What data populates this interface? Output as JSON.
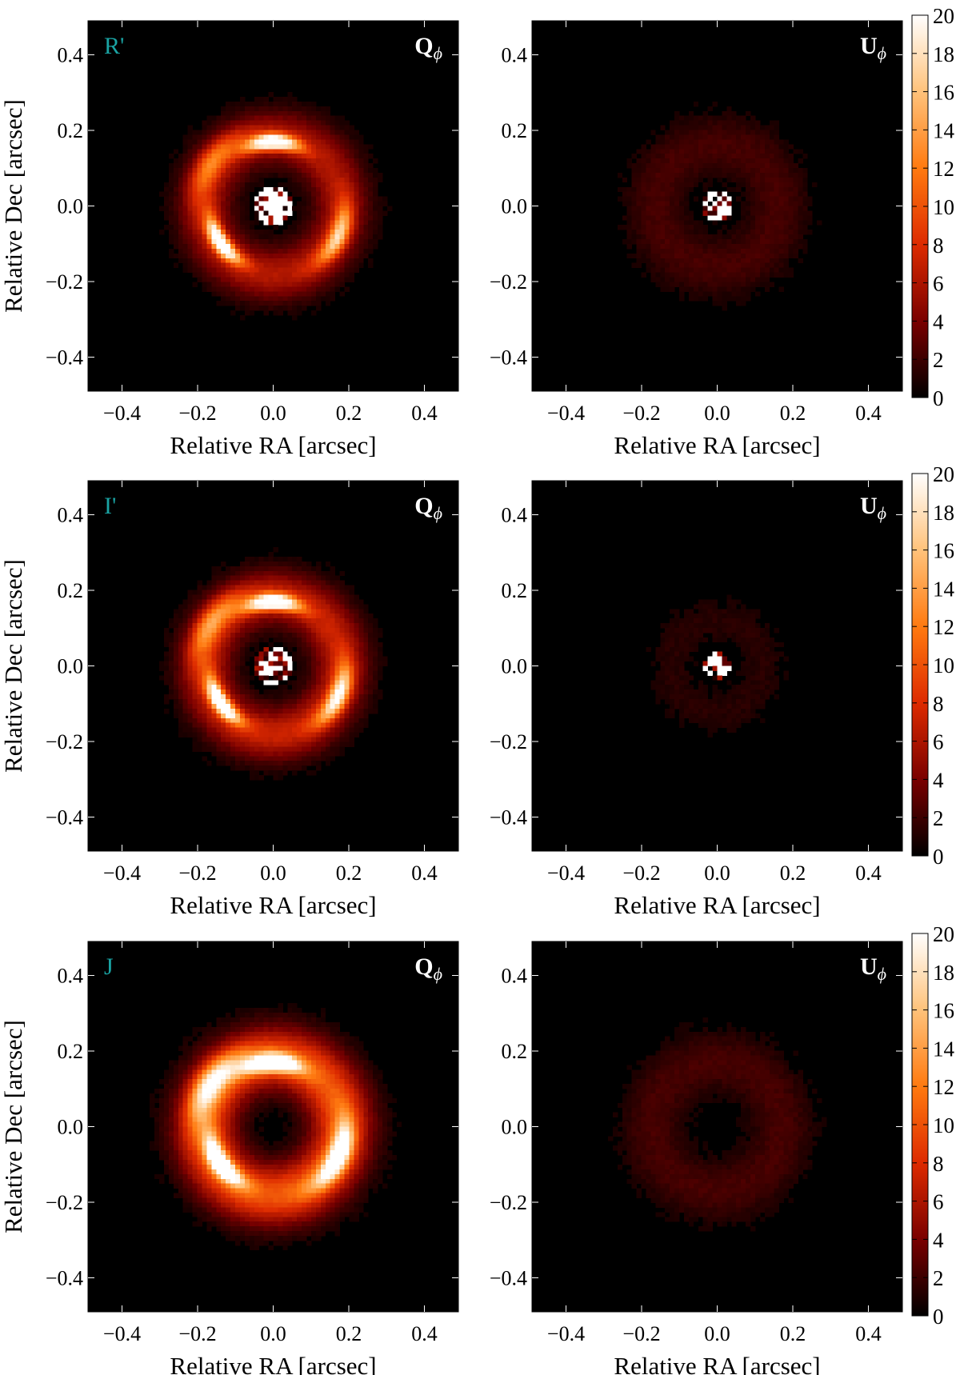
{
  "chart_data": {
    "type": "heatmap",
    "rows": [
      {
        "band": "R'",
        "panels": [
          {
            "stokes": "Q",
            "xlabel": "Relative RA [arcsec]",
            "ylabel": "Relative Dec [arcsec]",
            "xlim": [
              -0.49,
              0.49
            ],
            "ylim": [
              -0.49,
              0.49
            ],
            "features": [
              {
                "kind": "arc",
                "pa_deg": 90,
                "radius": 0.17,
                "width": 0.025,
                "span_deg": 55,
                "peak": 20
              },
              {
                "kind": "arc",
                "pa_deg": 215,
                "radius": 0.17,
                "width": 0.025,
                "span_deg": 55,
                "peak": 20
              },
              {
                "kind": "arc",
                "pa_deg": 335,
                "radius": 0.19,
                "width": 0.03,
                "span_deg": 60,
                "peak": 12
              },
              {
                "kind": "arc",
                "pa_deg": 145,
                "radius": 0.2,
                "width": 0.04,
                "span_deg": 70,
                "peak": 7
              },
              {
                "kind": "halo",
                "radius": 0.18,
                "width": 0.07,
                "peak": 6
              },
              {
                "kind": "core",
                "radius": 0.05,
                "peak": 20
              }
            ]
          },
          {
            "stokes": "U",
            "xlabel": "Relative RA [arcsec]",
            "ylabel": "",
            "xlim": [
              -0.49,
              0.49
            ],
            "ylim": [
              -0.49,
              0.49
            ],
            "features": [
              {
                "kind": "halo",
                "radius": 0.16,
                "width": 0.08,
                "peak": 2
              },
              {
                "kind": "core",
                "radius": 0.04,
                "peak": 20
              }
            ]
          }
        ]
      },
      {
        "band": "I'",
        "panels": [
          {
            "stokes": "Q",
            "xlabel": "Relative RA [arcsec]",
            "ylabel": "Relative Dec [arcsec]",
            "xlim": [
              -0.49,
              0.49
            ],
            "ylim": [
              -0.49,
              0.49
            ],
            "features": [
              {
                "kind": "arc",
                "pa_deg": 90,
                "radius": 0.17,
                "width": 0.025,
                "span_deg": 55,
                "peak": 20
              },
              {
                "kind": "arc",
                "pa_deg": 215,
                "radius": 0.17,
                "width": 0.025,
                "span_deg": 55,
                "peak": 20
              },
              {
                "kind": "arc",
                "pa_deg": 335,
                "radius": 0.19,
                "width": 0.03,
                "span_deg": 60,
                "peak": 14
              },
              {
                "kind": "arc",
                "pa_deg": 145,
                "radius": 0.2,
                "width": 0.04,
                "span_deg": 70,
                "peak": 8
              },
              {
                "kind": "halo",
                "radius": 0.18,
                "width": 0.07,
                "peak": 7
              },
              {
                "kind": "core",
                "radius": 0.05,
                "peak": 20
              }
            ]
          },
          {
            "stokes": "U",
            "xlabel": "Relative RA [arcsec]",
            "ylabel": "",
            "xlim": [
              -0.49,
              0.49
            ],
            "ylim": [
              -0.49,
              0.49
            ],
            "features": [
              {
                "kind": "halo",
                "radius": 0.12,
                "width": 0.06,
                "peak": 1
              },
              {
                "kind": "core",
                "radius": 0.035,
                "peak": 20
              }
            ]
          }
        ]
      },
      {
        "band": "J",
        "panels": [
          {
            "stokes": "Q",
            "xlabel": "Relative RA [arcsec]",
            "ylabel": "Relative Dec [arcsec]",
            "xlim": [
              -0.49,
              0.49
            ],
            "ylim": [
              -0.49,
              0.49
            ],
            "features": [
              {
                "kind": "arc",
                "pa_deg": 90,
                "radius": 0.17,
                "width": 0.03,
                "span_deg": 60,
                "peak": 20
              },
              {
                "kind": "arc",
                "pa_deg": 215,
                "radius": 0.17,
                "width": 0.03,
                "span_deg": 60,
                "peak": 20
              },
              {
                "kind": "arc",
                "pa_deg": 335,
                "radius": 0.19,
                "width": 0.035,
                "span_deg": 70,
                "peak": 16
              },
              {
                "kind": "arc",
                "pa_deg": 145,
                "radius": 0.2,
                "width": 0.045,
                "span_deg": 70,
                "peak": 12
              },
              {
                "kind": "halo",
                "radius": 0.18,
                "width": 0.08,
                "peak": 10
              }
            ]
          },
          {
            "stokes": "U",
            "xlabel": "Relative RA [arcsec]",
            "ylabel": "",
            "xlim": [
              -0.49,
              0.49
            ],
            "ylim": [
              -0.49,
              0.49
            ],
            "features": [
              {
                "kind": "halo",
                "radius": 0.17,
                "width": 0.08,
                "peak": 2
              }
            ]
          }
        ]
      }
    ],
    "x_ticks": [
      -0.4,
      -0.2,
      0.0,
      0.2,
      0.4
    ],
    "y_ticks": [
      0.4,
      0.2,
      0.0,
      -0.2,
      -0.4
    ],
    "tick_labels": [
      "−0.4",
      "−0.2",
      "0.0",
      "0.2",
      "0.4"
    ],
    "colorbar": {
      "range": [
        0,
        20
      ],
      "ticks": [
        0,
        2,
        4,
        6,
        8,
        10,
        12,
        14,
        16,
        18,
        20
      ],
      "tick_labels": [
        "0",
        "2",
        "4",
        "6",
        "8",
        "10",
        "12",
        "14",
        "16",
        "18",
        "20"
      ],
      "colormap": [
        "#000000",
        "#7a0000",
        "#dd2a00",
        "#ff7a10",
        "#ffc27a",
        "#ffffff"
      ]
    },
    "label_colors": {
      "band": "#1aa3a3",
      "stokes": "#ffffff"
    },
    "stokes_subscript": "ϕ",
    "grid": false,
    "legend": "none"
  }
}
